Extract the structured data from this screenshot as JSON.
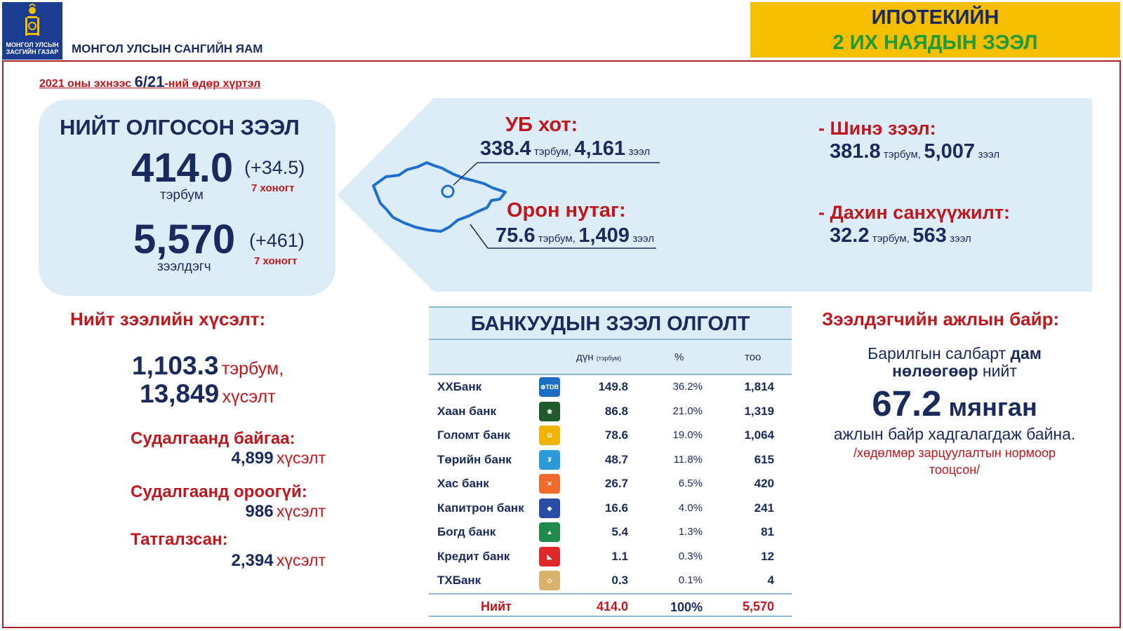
{
  "header": {
    "logo_text": "МОНГОЛ УЛСЫН\nЗАСГИЙН ГАЗАР",
    "ministry": "МОНГОЛ УЛСЫН САНГИЙН ЯАМ",
    "title_line1": "ИПОТЕКИЙН",
    "title_line2": "2 ИХ НАЯДЫН ЗЭЭЛ"
  },
  "date_note": {
    "prefix": "2021 оны эхнээс ",
    "date": "6/21",
    "suffix": "-ний өдөр хүртэл"
  },
  "total": {
    "title": "НИЙТ ОЛГОСОН ЗЭЭЛ",
    "amount": "414.0",
    "amount_delta": "(+34.5)",
    "amount_unit": "тэрбум",
    "count": "5,570",
    "count_delta": "(+461)",
    "count_unit": "зээлдэгч",
    "week_label": "7 хоногт"
  },
  "regions": {
    "ub_label": "УБ хот:",
    "ub_amount": "338.4",
    "ub_count": "4,161",
    "rural_label": "Орон нутаг:",
    "rural_amount": "75.6",
    "rural_count": "1,409",
    "unit_amount": "тэрбум,",
    "unit_loan": "зээл"
  },
  "loan_types": {
    "new_label": "- Шинэ зээл:",
    "new_amount": "381.8",
    "new_count": "5,007",
    "refi_label": "- Дахин санхүүжилт:",
    "refi_amount": "32.2",
    "refi_count": "563"
  },
  "requests": {
    "title": "Нийт зээлийн хүсэлт:",
    "amount": "1,103.3",
    "amount_unit": "тэрбум,",
    "count": "13,849",
    "count_unit": "хүсэлт",
    "in_review_label": "Судалгаанд байгаа:",
    "in_review": "4,899",
    "not_reviewed_label": "Судалгаанд ороогүй:",
    "not_reviewed": "986",
    "rejected_label": "Татгалзсан:",
    "rejected": "2,394",
    "unit": "хүсэлт"
  },
  "bank_table": {
    "title": "БАНКУУДЫН ЗЭЭЛ ОЛГОЛТ",
    "col_amount": "дүн",
    "col_amount_unit": "(тэрбум)",
    "col_pct": "%",
    "col_count": "тоо",
    "rows": [
      {
        "name": "ХХБанк",
        "logo": "tdb-logo-icon",
        "logo_text": "⊕TDB",
        "color": "#1a6fc4",
        "amount": "149.8",
        "pct": "36.2%",
        "count": "1,814"
      },
      {
        "name": "Хаан банк",
        "logo": "khan-bank-logo-icon",
        "logo_text": "❀",
        "color": "#1f5a2a",
        "amount": "86.8",
        "pct": "21.0%",
        "count": "1,319"
      },
      {
        "name": "Голомт банк",
        "logo": "golomt-logo-icon",
        "logo_text": "G",
        "color": "#f0b400",
        "amount": "78.6",
        "pct": "19.0%",
        "count": "1,064"
      },
      {
        "name": "Төрийн банк",
        "logo": "state-bank-logo-icon",
        "logo_text": "₮",
        "color": "#2b9ad8",
        "amount": "48.7",
        "pct": "11.8%",
        "count": "615"
      },
      {
        "name": "Хас банк",
        "logo": "xac-bank-logo-icon",
        "logo_text": "✕",
        "color": "#f06a2a",
        "amount": "26.7",
        "pct": "6.5%",
        "count": "420"
      },
      {
        "name": "Капитрон банк",
        "logo": "capitron-logo-icon",
        "logo_text": "◈",
        "color": "#2a4aa8",
        "amount": "16.6",
        "pct": "4.0%",
        "count": "241"
      },
      {
        "name": "Богд банк",
        "logo": "bogd-bank-logo-icon",
        "logo_text": "▲",
        "color": "#1f8a4a",
        "amount": "5.4",
        "pct": "1.3%",
        "count": "81"
      },
      {
        "name": "Кредит банк",
        "logo": "credit-bank-logo-icon",
        "logo_text": "◣",
        "color": "#e02828",
        "amount": "1.1",
        "pct": "0.3%",
        "count": "12"
      },
      {
        "name": "ТХБанк",
        "logo": "tdb-trade-logo-icon",
        "logo_text": "◇",
        "color": "#d9b36a",
        "amount": "0.3",
        "pct": "0.1%",
        "count": "4"
      }
    ],
    "total": {
      "name": "Нийт",
      "amount": "414.0",
      "pct": "100%",
      "count": "5,570"
    }
  },
  "jobs": {
    "title": "Зээлдэгчийн ажлын байр:",
    "line1_a": "Барилгын салбарт ",
    "line1_b": "дам",
    "line2_a": "нөлөөгөөр",
    "line2_b": " нийт",
    "big_value": "67.2",
    "big_unit": " мянган",
    "line3": "ажлын байр хадгалагдаж байна.",
    "note1": "/хөдөлмөр зарцуулалтын нормоор",
    "note2": "тооцсон/"
  }
}
